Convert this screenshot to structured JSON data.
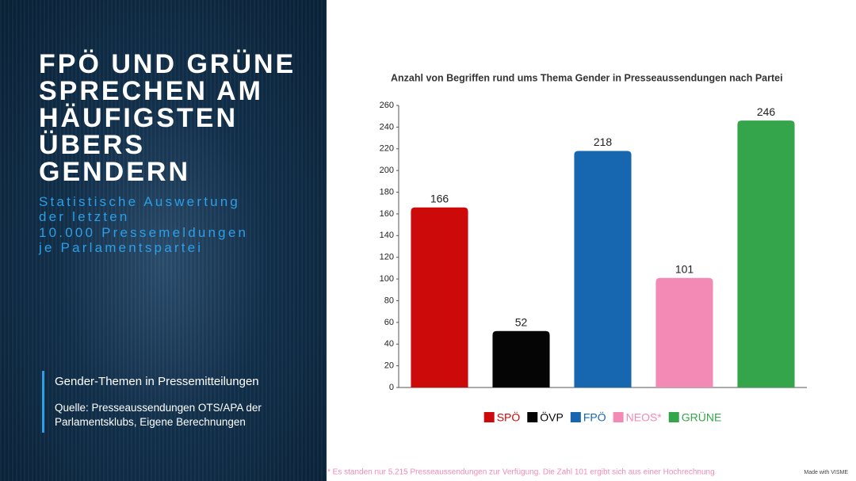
{
  "slide": {
    "title_lines": [
      "FPÖ UND GRÜNE",
      "SPRECHEN AM",
      "HÄUFIGSTEN",
      "ÜBERS",
      "GENDERN"
    ],
    "subtitle_lines": [
      "Statistische Auswertung",
      "der letzten",
      "10.000 Pressemeldungen",
      "je Parlamentspartei"
    ],
    "box_heading": "Gender-Themen in Pressemitteilungen",
    "box_source_lines": [
      "Quelle: Presseaussendungen OTS/APA der",
      "Parlamentsklubs, Eigene Berechnungen"
    ],
    "footnote": "* Es standen nur 5.215 Presseaussendungen zur Verfügung. Die Zahl 101 ergibt sich aus einer Hochrechnung",
    "credit": "Made with VISME"
  },
  "chart_data": {
    "type": "bar",
    "title": "Anzahl von Begriffen rund ums Thema Gender in Presseaussendungen nach Partei",
    "categories": [
      "SPÖ",
      "ÖVP",
      "FPÖ",
      "NEOS*",
      "GRÜNE"
    ],
    "values": [
      166,
      52,
      218,
      101,
      246
    ],
    "colors": [
      "#cc0a0a",
      "#050505",
      "#1666b0",
      "#f28ab5",
      "#34a54b"
    ],
    "ylim": [
      0,
      260
    ],
    "yticks": [
      0,
      20,
      40,
      60,
      80,
      100,
      120,
      140,
      160,
      180,
      200,
      220,
      240,
      260
    ],
    "legend": "bottom"
  }
}
